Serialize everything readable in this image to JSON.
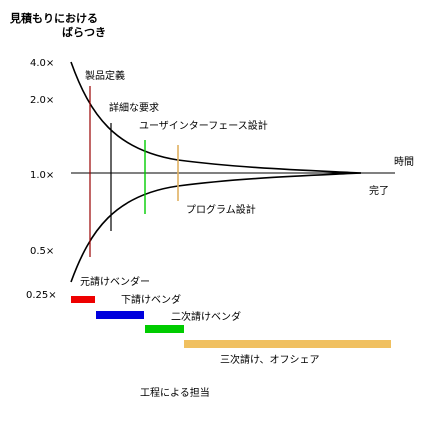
{
  "title_lines": [
    "見積もりにおける",
    "ばらつき"
  ],
  "y_ticks": [
    {
      "label": "4.0×",
      "value": 4.0
    },
    {
      "label": "2.0×",
      "value": 2.0
    },
    {
      "label": "1.0×",
      "value": 1.0
    },
    {
      "label": "0.5×",
      "value": 0.5
    },
    {
      "label": "0.25×",
      "value": 0.25
    }
  ],
  "time_label": "時間",
  "end_label": "完了",
  "milestones": [
    {
      "label": "製品定義",
      "color": "#990000"
    },
    {
      "label": "詳細な要求",
      "color": "#000000"
    },
    {
      "label": "ユーザインターフェース設計",
      "color": "#00cc00"
    },
    {
      "label": "プログラム設計",
      "color": "#e0b060"
    }
  ],
  "responsibility_label": "工程による担当",
  "phases": [
    {
      "label": "元請けベンダー",
      "color": "#ee0000"
    },
    {
      "label": "下請けベンダ",
      "color": "#0000dd"
    },
    {
      "label": "二次請けベンダ",
      "color": "#00cc00"
    },
    {
      "label": "三次請け、オフシェア",
      "color": "#f0c060"
    }
  ]
}
